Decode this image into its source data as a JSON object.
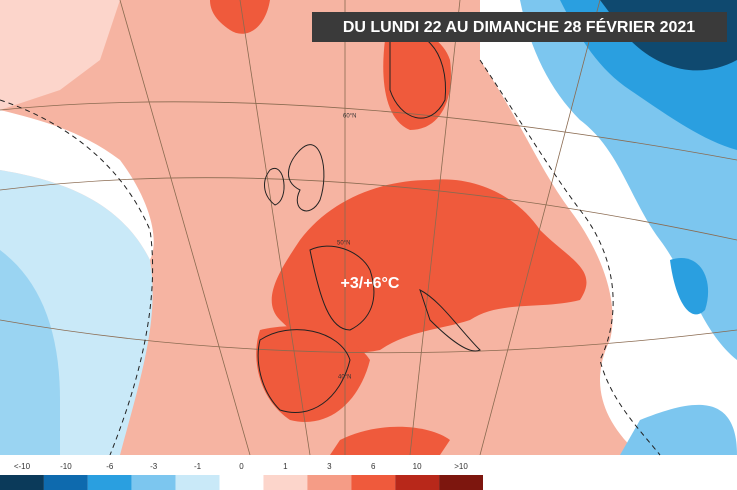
{
  "title": "DU LUNDI 22 AU DIMANCHE 28 FÉVRIER 2021",
  "annotation": "+3/+6°C",
  "graticule_labels": [
    "60°N",
    "50°N",
    "40°N"
  ],
  "legend": {
    "labels": [
      "<-10",
      "-10",
      "-6",
      "-3",
      "-1",
      "0",
      "1",
      "3",
      "6",
      "10",
      ">10"
    ],
    "colors": [
      "#0b3a5a",
      "#0e6aae",
      "#2a9fe0",
      "#7cc6ef",
      "#c9e9f8",
      "#ffffff",
      "#fcd5cb",
      "#f59c86",
      "#ef5a3c",
      "#b8281a",
      "#7d160e"
    ]
  }
}
